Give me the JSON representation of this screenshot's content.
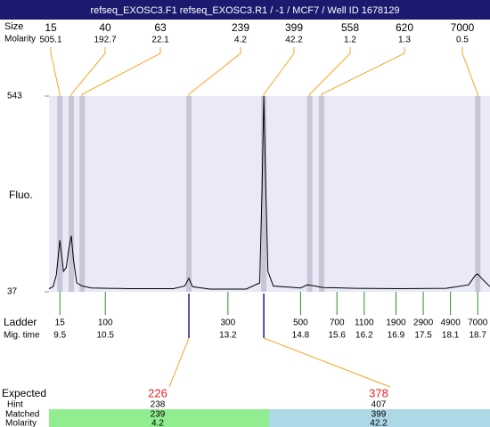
{
  "header": {
    "title": "refseq_EXOSC3.F1  refseq_EXOSC3.R1 / -1 / MCF7 / Well ID 1678129"
  },
  "chart_data": {
    "type": "line",
    "y_label": "Fluo.",
    "x": [
      9.26,
      9.35,
      9.42,
      9.5,
      9.58,
      9.64,
      9.7,
      9.75,
      9.8,
      9.87,
      9.99,
      10.2,
      11.0,
      12.0,
      12.25,
      12.34,
      12.42,
      12.8,
      13.6,
      13.9,
      13.95,
      13.99,
      14.03,
      14.08,
      14.2,
      14.8,
      14.95,
      15.05,
      15.3,
      16.0,
      17.0,
      18.0,
      18.5,
      18.65,
      18.7,
      18.8,
      18.97
    ],
    "series": [
      {
        "color": "#000000",
        "values": [
          45,
          50,
          80,
          170,
          90,
          100,
          150,
          182,
          120,
          60,
          52,
          47,
          45,
          45,
          52,
          72,
          50,
          44,
          44,
          60,
          300,
          543,
          320,
          90,
          52,
          47,
          55,
          53,
          48,
          46,
          45,
          46,
          55,
          80,
          83,
          70,
          50
        ]
      }
    ],
    "xlim": [
      9.26,
      18.97
    ],
    "ylim": [
      37,
      543
    ],
    "yticks": [
      37,
      543
    ]
  },
  "peaks": {
    "size_label": "Size",
    "molarity_label": "Molarity",
    "sizes": [
      15,
      40,
      63,
      239,
      399,
      558,
      620,
      7000
    ],
    "molarities": [
      505.1,
      192.7,
      22.1,
      4.2,
      42.2,
      1.2,
      1.3,
      0.5
    ],
    "mig_times": [
      9.5,
      9.75,
      9.99,
      12.34,
      13.99,
      15.0,
      15.26,
      18.7
    ]
  },
  "ladder": {
    "label": "Ladder",
    "time_label": "Mig. time",
    "sizes": [
      15,
      100,
      300,
      500,
      700,
      1100,
      1900,
      2900,
      4900,
      7000
    ],
    "mig_times": [
      9.5,
      10.5,
      13.2,
      14.8,
      15.6,
      16.2,
      16.9,
      17.5,
      18.1,
      18.7
    ]
  },
  "expected": {
    "label": "Expected",
    "hint_label": "Hint",
    "matched_label": "Matched",
    "molarity_label": "Molarity",
    "targets": [
      {
        "expected": 226,
        "hint": 238,
        "matched": 239,
        "molarity": 4.2,
        "mig_time": 12.34
      },
      {
        "expected": 378,
        "hint": 407,
        "matched": 399,
        "molarity": 42.2,
        "mig_time": 13.99
      }
    ]
  }
}
